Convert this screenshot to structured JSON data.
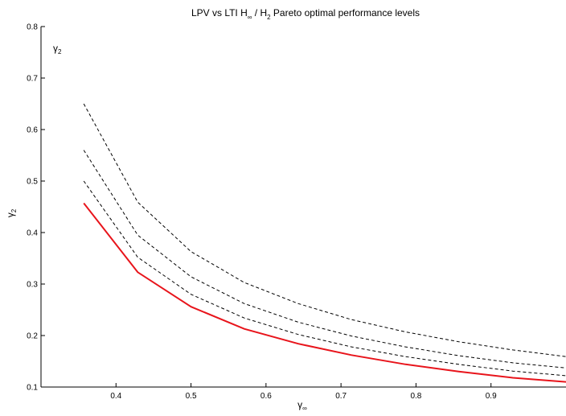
{
  "chart_data": {
    "type": "line",
    "title": "LPV vs LTI H∞ / H2 Pareto optimal performance levels",
    "title_parts": {
      "prefix": "LPV vs LTI H",
      "sub1": "∞",
      "middle": " / H",
      "sub2": "2",
      "suffix": " Pareto optimal performance levels"
    },
    "xlabel": "γ∞",
    "xlabel_parts": {
      "base": "γ",
      "sub": "∞"
    },
    "ylabel": "γ2",
    "ylabel_parts": {
      "base": "γ",
      "sub": "2"
    },
    "annotation": {
      "text": "γ2",
      "base": "γ",
      "sub": "2"
    },
    "xlim": [
      0.3,
      1.0
    ],
    "ylim": [
      0.1,
      0.8
    ],
    "xticks": [
      "0.4",
      "0.5",
      "0.6",
      "0.7",
      "0.8",
      "0.9"
    ],
    "yticks": [
      "0.1",
      "0.2",
      "0.3",
      "0.4",
      "0.5",
      "0.6",
      "0.7",
      "0.8"
    ],
    "x": [
      0.357,
      0.429,
      0.5,
      0.571,
      0.643,
      0.714,
      0.786,
      0.857,
      0.929,
      1.0
    ],
    "series": [
      {
        "style": "solid",
        "color": "#e8141b",
        "values": [
          0.457,
          0.323,
          0.256,
          0.213,
          0.184,
          0.162,
          0.144,
          0.13,
          0.118,
          0.11
        ]
      },
      {
        "style": "dashed",
        "color": "#000000",
        "values": [
          0.5,
          0.352,
          0.28,
          0.234,
          0.202,
          0.178,
          0.159,
          0.144,
          0.131,
          0.122
        ]
      },
      {
        "style": "dashed",
        "color": "#000000",
        "values": [
          0.56,
          0.395,
          0.314,
          0.262,
          0.226,
          0.199,
          0.178,
          0.161,
          0.147,
          0.137
        ]
      },
      {
        "style": "dashed",
        "color": "#000000",
        "values": [
          0.65,
          0.459,
          0.363,
          0.303,
          0.262,
          0.231,
          0.207,
          0.188,
          0.172,
          0.159
        ]
      }
    ]
  }
}
